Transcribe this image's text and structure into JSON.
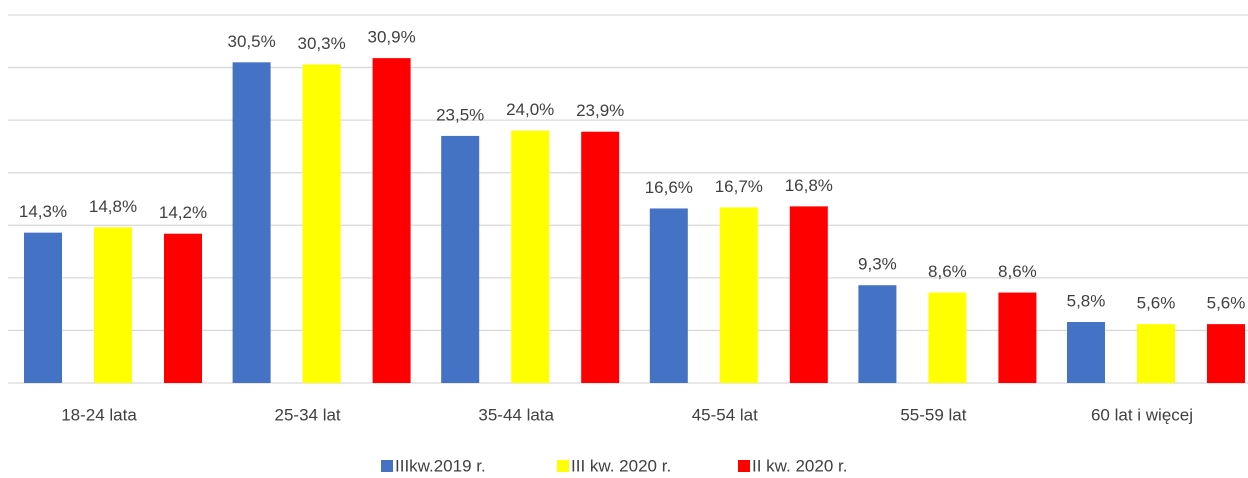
{
  "chart_data": {
    "type": "bar",
    "categories": [
      "18-24 lata",
      "25-34 lat",
      "35-44 lata",
      "45-54 lat",
      "55-59 lat",
      "60 lat i więcej"
    ],
    "series": [
      {
        "name": "IIIkw.2019 r.",
        "color": "#4472c4",
        "values": [
          14.3,
          30.5,
          23.5,
          16.6,
          9.3,
          5.8
        ],
        "value_labels": [
          "14,3%",
          "30,5%",
          "23,5%",
          "16,6%",
          "9,3%",
          "5,8%"
        ]
      },
      {
        "name": "III kw. 2020 r.",
        "color": "#ffff00",
        "values": [
          14.8,
          30.3,
          24.0,
          16.7,
          8.6,
          5.6
        ],
        "value_labels": [
          "14,8%",
          "30,3%",
          "24,0%",
          "16,7%",
          "8,6%",
          "5,6%"
        ]
      },
      {
        "name": "II kw. 2020 r.",
        "color": "#ff0000",
        "values": [
          14.2,
          30.9,
          23.9,
          16.8,
          8.6,
          5.6
        ],
        "value_labels": [
          "14,2%",
          "30,9%",
          "23,9%",
          "16,8%",
          "8,6%",
          "5,6%"
        ]
      }
    ],
    "ylim": [
      0,
      35
    ],
    "yticks": [
      0,
      5,
      10,
      15,
      20,
      25,
      30,
      35
    ],
    "grid": true,
    "legend": "bottom"
  }
}
